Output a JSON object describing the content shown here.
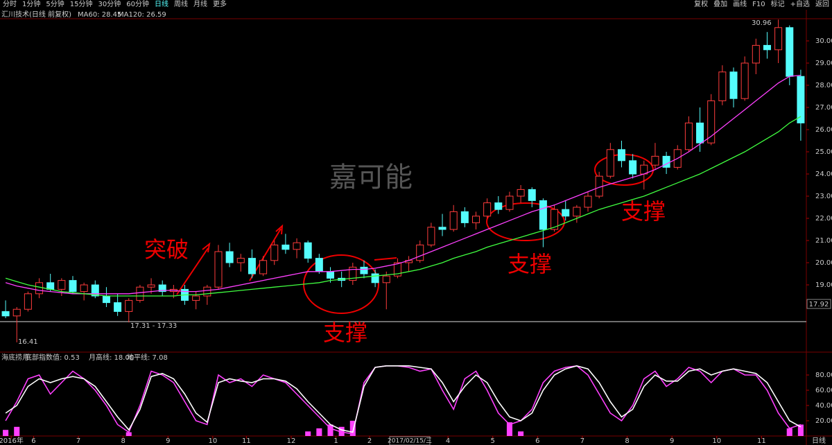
{
  "toolbar": {
    "left": [
      "分时",
      "1分钟",
      "5分钟",
      "15分钟",
      "30分钟",
      "60分钟",
      "日线",
      "周线",
      "月线",
      "更多"
    ],
    "right": [
      "复权",
      "叠加",
      "画线",
      "F10",
      "标记",
      "+自选",
      "返回"
    ]
  },
  "chart_data": [
    {
      "type": "candlestick",
      "title": "汇川技术(日线 前复权)",
      "open": [
        17.8,
        17.6,
        17.9,
        18.6,
        19.1,
        18.8,
        19.2,
        18.7,
        19.0,
        18.5,
        18.2,
        17.8,
        18.3,
        18.9,
        19.0,
        18.7,
        18.8,
        18.3,
        18.5,
        18.9,
        20.5,
        20.0,
        20.2,
        19.5,
        20.1,
        20.8,
        20.6,
        20.9,
        20.2,
        19.6,
        19.3,
        19.2,
        19.8,
        19.5,
        19.1,
        19.4,
        20.0,
        20.1,
        20.8,
        21.6,
        21.5,
        22.3,
        21.8,
        22.1,
        22.7,
        22.4,
        23.0,
        23.3,
        22.8,
        21.5,
        22.4,
        22.1,
        22.5,
        23.0,
        23.9,
        25.1,
        24.6,
        24.0,
        24.4,
        24.8,
        24.3,
        25.1,
        26.3,
        25.4,
        27.3,
        28.6,
        27.4,
        29.0,
        29.8,
        29.6,
        30.6,
        28.4
      ],
      "high": [
        18.3,
        18.0,
        18.7,
        19.3,
        19.5,
        19.3,
        19.4,
        19.1,
        19.2,
        18.9,
        18.6,
        18.4,
        19.0,
        19.3,
        19.2,
        19.0,
        19.0,
        18.7,
        19.0,
        20.8,
        20.9,
        20.4,
        20.6,
        20.3,
        21.0,
        21.3,
        21.1,
        21.0,
        20.4,
        19.8,
        19.6,
        20.0,
        20.1,
        19.7,
        19.6,
        20.2,
        20.3,
        21.0,
        21.8,
        22.2,
        22.6,
        22.5,
        22.3,
        22.9,
        23.0,
        23.2,
        23.5,
        23.4,
        22.9,
        22.6,
        22.8,
        22.6,
        23.2,
        24.1,
        25.4,
        25.5,
        24.9,
        24.6,
        25.4,
        25.0,
        25.3,
        26.6,
        27.0,
        27.6,
        28.9,
        28.8,
        29.3,
        30.1,
        30.4,
        30.96,
        30.7,
        28.7
      ],
      "low": [
        17.5,
        16.41,
        17.8,
        18.4,
        18.7,
        18.5,
        18.6,
        18.3,
        18.4,
        18.0,
        17.6,
        17.31,
        18.2,
        18.6,
        18.5,
        18.4,
        18.1,
        17.9,
        18.1,
        18.8,
        19.8,
        19.6,
        19.3,
        19.4,
        19.9,
        20.4,
        20.2,
        20.0,
        19.5,
        19.1,
        18.9,
        19.0,
        19.3,
        18.9,
        17.9,
        19.3,
        19.6,
        20.0,
        20.7,
        21.2,
        21.4,
        21.6,
        21.5,
        22.0,
        22.2,
        22.3,
        22.7,
        22.5,
        20.7,
        21.4,
        21.9,
        21.8,
        22.3,
        22.9,
        23.8,
        24.3,
        23.8,
        23.3,
        24.2,
        24.0,
        24.2,
        25.0,
        25.0,
        25.3,
        27.1,
        27.0,
        27.3,
        28.5,
        29.2,
        29.0,
        28.0,
        25.5
      ],
      "close": [
        17.6,
        17.9,
        18.6,
        19.1,
        18.8,
        19.2,
        18.7,
        19.0,
        18.5,
        18.2,
        17.8,
        18.3,
        18.9,
        19.0,
        18.7,
        18.8,
        18.3,
        18.5,
        18.9,
        20.5,
        20.0,
        20.2,
        19.5,
        20.1,
        20.8,
        20.6,
        20.9,
        20.2,
        19.6,
        19.3,
        19.2,
        19.8,
        19.5,
        19.1,
        19.4,
        20.0,
        20.1,
        20.8,
        21.6,
        21.5,
        22.3,
        21.8,
        22.1,
        22.7,
        22.4,
        23.0,
        23.3,
        22.8,
        21.5,
        22.4,
        22.1,
        22.5,
        23.0,
        23.9,
        25.1,
        24.6,
        24.0,
        24.4,
        24.8,
        24.3,
        25.1,
        26.3,
        25.4,
        27.3,
        28.6,
        27.4,
        29.0,
        29.8,
        29.6,
        30.6,
        28.4,
        26.3
      ],
      "up_color": "#ff3c3c",
      "down_color": "#54fcfc",
      "series": [
        {
          "name": "MA60: 28.45",
          "color": "#ff40ff",
          "values": [
            19.1,
            18.95,
            18.85,
            18.75,
            18.7,
            18.65,
            18.6,
            18.6,
            18.6,
            18.6,
            18.6,
            18.6,
            18.65,
            18.7,
            18.75,
            18.75,
            18.7,
            18.7,
            18.75,
            18.8,
            18.9,
            19.0,
            19.1,
            19.2,
            19.3,
            19.4,
            19.5,
            19.6,
            19.6,
            19.6,
            19.65,
            19.7,
            19.7,
            19.75,
            19.85,
            19.95,
            20.1,
            20.3,
            20.5,
            20.7,
            20.9,
            21.1,
            21.3,
            21.5,
            21.7,
            21.9,
            22.1,
            22.3,
            22.45,
            22.6,
            22.8,
            23.0,
            23.2,
            23.4,
            23.55,
            23.7,
            23.85,
            24.0,
            24.2,
            24.45,
            24.7,
            25.0,
            25.35,
            25.7,
            26.1,
            26.5,
            26.9,
            27.3,
            27.7,
            28.1,
            28.4,
            28.45
          ]
        },
        {
          "name": "MA120: 26.59",
          "color": "#40ff40",
          "values": [
            19.3,
            19.15,
            19.0,
            18.9,
            18.8,
            18.7,
            18.65,
            18.6,
            18.55,
            18.5,
            18.5,
            18.5,
            18.5,
            18.5,
            18.5,
            18.5,
            18.55,
            18.55,
            18.6,
            18.65,
            18.7,
            18.75,
            18.8,
            18.85,
            18.9,
            18.95,
            19.0,
            19.05,
            19.1,
            19.2,
            19.25,
            19.3,
            19.35,
            19.4,
            19.45,
            19.5,
            19.6,
            19.7,
            19.85,
            20.0,
            20.2,
            20.35,
            20.5,
            20.7,
            20.85,
            21.0,
            21.15,
            21.3,
            21.45,
            21.6,
            21.8,
            22.0,
            22.2,
            22.4,
            22.55,
            22.7,
            22.85,
            23.0,
            23.2,
            23.4,
            23.6,
            23.8,
            24.0,
            24.25,
            24.5,
            24.75,
            25.0,
            25.3,
            25.6,
            25.9,
            26.3,
            26.59
          ]
        }
      ],
      "xlim": [
        0,
        72
      ],
      "ylim": [
        16,
        31
      ],
      "yticks": [
        {
          "value": 19,
          "label": "19.00"
        },
        {
          "value": 20,
          "label": "20.00"
        },
        {
          "value": 21,
          "label": "21.00"
        },
        {
          "value": 22,
          "label": "22.00"
        },
        {
          "value": 23,
          "label": "23.00"
        },
        {
          "value": 24,
          "label": "24.00"
        },
        {
          "value": 25,
          "label": "25.00"
        },
        {
          "value": 26,
          "label": "26.00"
        },
        {
          "value": 27,
          "label": "27.00"
        },
        {
          "value": 28,
          "label": "28.00"
        },
        {
          "value": 29,
          "label": "29.00"
        },
        {
          "value": 30,
          "label": "30.00"
        }
      ],
      "annotations": [
        "16.41",
        "17.31 - 17.33",
        "30.96",
        "嘉可能",
        "突破",
        "支撑",
        "支撑",
        "支撑",
        "17.92"
      ]
    },
    {
      "type": "line",
      "title": "海底捞月",
      "legend": [
        {
          "text": "底部指数值: 0.53",
          "color": "#ff40ff"
        },
        {
          "text": "月高线: 18.00",
          "color": "#ff40ff"
        },
        {
          "text": "地平线: 7.08",
          "color": "#ffffff"
        }
      ],
      "series": [
        {
          "color": "#ff40ff",
          "values": [
            20,
            45,
            75,
            80,
            55,
            70,
            85,
            75,
            60,
            40,
            15,
            5,
            40,
            85,
            80,
            70,
            45,
            20,
            15,
            80,
            70,
            75,
            65,
            80,
            75,
            70,
            55,
            40,
            25,
            10,
            5,
            3,
            70,
            90,
            92,
            92,
            90,
            85,
            88,
            60,
            35,
            75,
            85,
            60,
            30,
            15,
            20,
            35,
            70,
            85,
            90,
            92,
            80,
            55,
            30,
            20,
            40,
            75,
            85,
            65,
            75,
            90,
            85,
            70,
            85,
            88,
            80,
            80,
            60,
            30,
            10,
            15
          ]
        },
        {
          "color": "#ffffff",
          "values": [
            30,
            40,
            65,
            75,
            70,
            75,
            78,
            75,
            65,
            45,
            25,
            8,
            35,
            78,
            82,
            75,
            55,
            30,
            18,
            70,
            75,
            72,
            70,
            75,
            75,
            72,
            62,
            45,
            30,
            15,
            8,
            5,
            65,
            90,
            92,
            92,
            92,
            90,
            88,
            70,
            45,
            65,
            80,
            70,
            45,
            25,
            20,
            30,
            60,
            80,
            88,
            92,
            88,
            70,
            45,
            25,
            35,
            65,
            80,
            72,
            72,
            85,
            88,
            80,
            85,
            88,
            85,
            82,
            70,
            45,
            20,
            12
          ]
        }
      ],
      "bars": {
        "color": "#ff40ff",
        "values": [
          8,
          12,
          null,
          null,
          null,
          null,
          null,
          null,
          null,
          null,
          null,
          5,
          null,
          null,
          null,
          null,
          null,
          null,
          null,
          null,
          null,
          null,
          null,
          null,
          null,
          null,
          null,
          6,
          10,
          15,
          12,
          20,
          null,
          null,
          null,
          null,
          null,
          null,
          null,
          null,
          null,
          null,
          null,
          null,
          null,
          18,
          6,
          null,
          null,
          null,
          null,
          null,
          null,
          null,
          null,
          null,
          null,
          null,
          null,
          null,
          null,
          null,
          null,
          null,
          null,
          null,
          null,
          null,
          null,
          null,
          10,
          15
        ]
      },
      "xlim": [
        0,
        72
      ],
      "ylim": [
        0,
        100
      ],
      "yticks": [
        {
          "value": 20,
          "label": "20.00"
        },
        {
          "value": 40,
          "label": "40.00"
        },
        {
          "value": 60,
          "label": "60.00"
        },
        {
          "value": 80,
          "label": "80.00"
        }
      ],
      "xticks": [
        {
          "value": 1,
          "label": "2016年"
        },
        {
          "value": 3,
          "label": "6"
        },
        {
          "value": 7,
          "label": "7"
        },
        {
          "value": 11,
          "label": "8"
        },
        {
          "value": 15,
          "label": "9"
        },
        {
          "value": 19,
          "label": "10"
        },
        {
          "value": 22,
          "label": "11"
        },
        {
          "value": 26,
          "label": "12"
        },
        {
          "value": 30,
          "label": "1"
        },
        {
          "value": 33,
          "label": "2"
        },
        {
          "value": 40,
          "label": "4"
        },
        {
          "value": 44,
          "label": "5"
        },
        {
          "value": 48,
          "label": "6"
        },
        {
          "value": 52,
          "label": "7"
        },
        {
          "value": 56,
          "label": "8"
        },
        {
          "value": 60,
          "label": "9"
        },
        {
          "value": 64,
          "label": "10"
        },
        {
          "value": 68,
          "label": "11"
        }
      ],
      "cursor_label": "2017/02/15/三"
    }
  ],
  "bottom_tab": "日线"
}
